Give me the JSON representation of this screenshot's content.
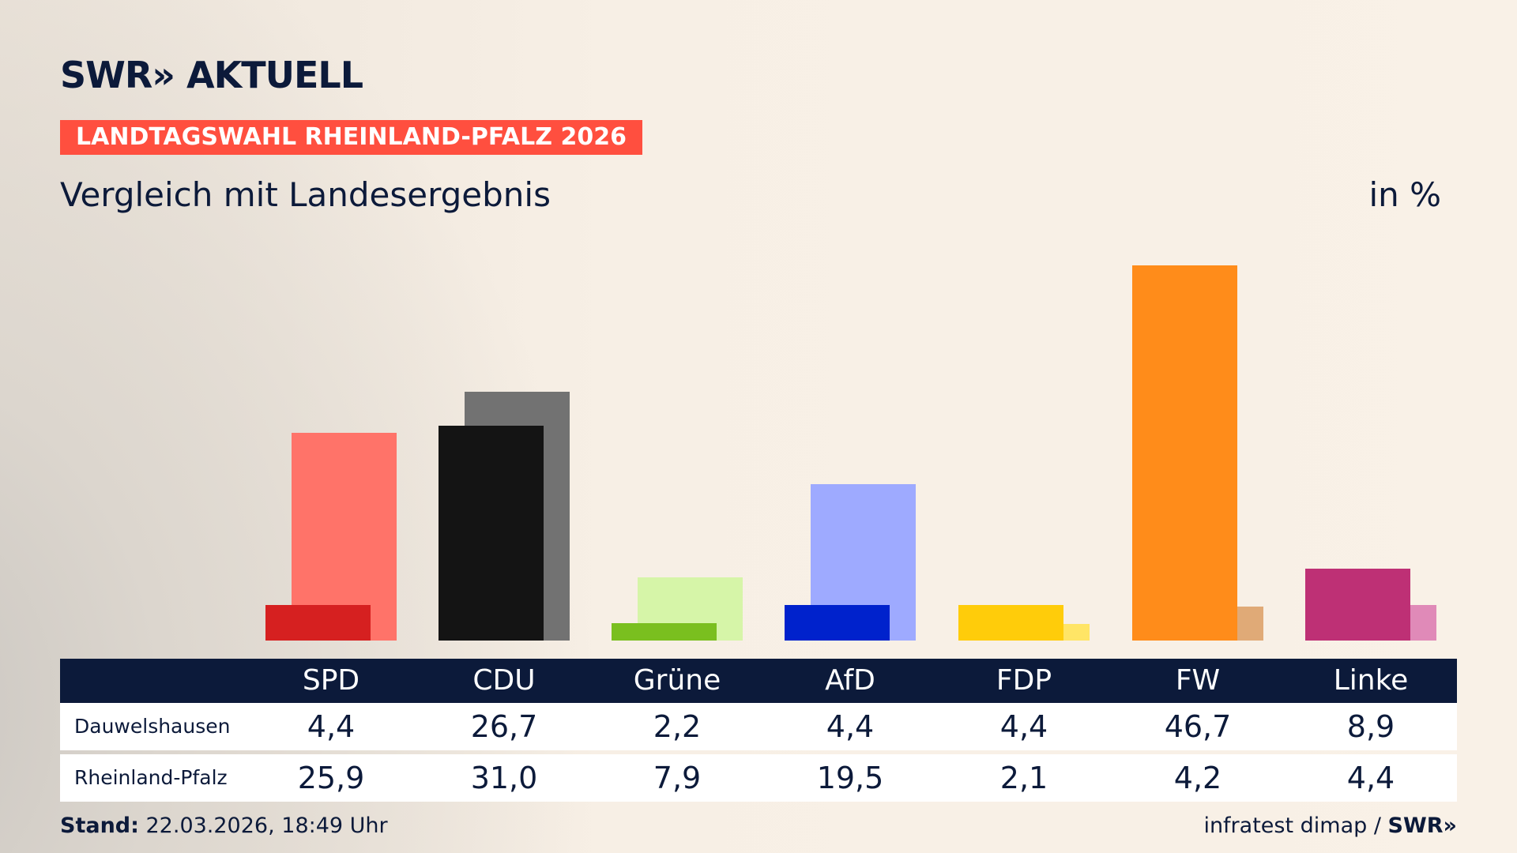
{
  "header": {
    "logo": "SWR» AKTUELL",
    "label": "LANDTAGSWAHL RHEINLAND-PFALZ 2026",
    "subtitle": "Vergleich mit Landesergebnis",
    "unit": "in %"
  },
  "chart_data": {
    "type": "bar",
    "title": "Vergleich mit Landesergebnis",
    "ylabel": "in %",
    "ylim": [
      0,
      47
    ],
    "categories": [
      "SPD",
      "CDU",
      "Grüne",
      "AfD",
      "FDP",
      "FW",
      "Linke"
    ],
    "series": [
      {
        "name": "Dauwelshausen",
        "values": [
          4.4,
          26.7,
          2.2,
          4.4,
          4.4,
          46.7,
          8.9
        ],
        "display": [
          "4,4",
          "26,7",
          "2,2",
          "4,4",
          "4,4",
          "46,7",
          "8,9"
        ],
        "colors": [
          "#d62020",
          "#141414",
          "#7abf1f",
          "#0022cc",
          "#ffcc0a",
          "#ff8c1a",
          "#be3075"
        ]
      },
      {
        "name": "Rheinland-Pfalz",
        "values": [
          25.9,
          31.0,
          7.9,
          19.5,
          2.1,
          4.2,
          4.4
        ],
        "display": [
          "25,9",
          "31,0",
          "7,9",
          "19,5",
          "2,1",
          "4,2",
          "4,4"
        ],
        "colors": [
          "#ff7369",
          "#727272",
          "#d6f5a8",
          "#9eaaff",
          "#ffe566",
          "#e0aa77",
          "#e08ab8"
        ]
      }
    ]
  },
  "footer": {
    "stand_label": "Stand:",
    "stand_value": " 22.03.2026, 18:49 Uhr",
    "source": "infratest dimap / ",
    "source_logo": "SWR»"
  }
}
